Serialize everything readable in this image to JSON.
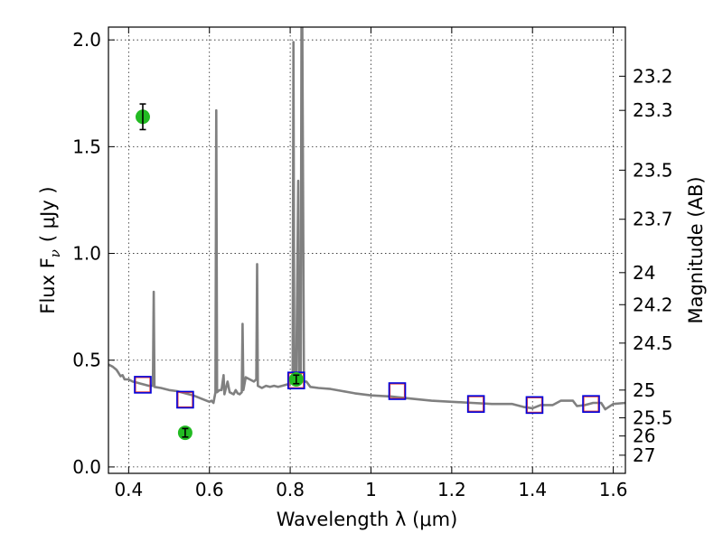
{
  "chart_data": {
    "type": "scatter",
    "xlabel": "Wavelength  λ (μm)",
    "ylabel": "Flux  F",
    "ylabel_sub": "ν",
    "ylabel_unit": "( μJy )",
    "y2label": "Magnitude (AB)",
    "xlim": [
      0.35,
      1.63
    ],
    "ylim": [
      -0.03,
      2.06
    ],
    "x_ticks": [
      0.4,
      0.6,
      0.8,
      1.0,
      1.2,
      1.4,
      1.6
    ],
    "x_tick_labels": [
      "0.4",
      "0.6",
      "0.8",
      "1",
      "1.2",
      "1.4",
      "1.6"
    ],
    "y_ticks": [
      0.0,
      0.5,
      1.0,
      1.5,
      2.0
    ],
    "y_tick_labels": [
      "0.0",
      "0.5",
      "1.0",
      "1.5",
      "2.0"
    ],
    "mag_ticks": [
      {
        "label": "23.2",
        "flux": 1.83
      },
      {
        "label": "23.3",
        "flux": 1.67
      },
      {
        "label": "23.5",
        "flux": 1.39
      },
      {
        "label": "23.7",
        "flux": 1.16
      },
      {
        "label": "24",
        "flux": 0.91
      },
      {
        "label": "24.2",
        "flux": 0.76
      },
      {
        "label": "24.5",
        "flux": 0.58
      },
      {
        "label": "25",
        "flux": 0.36
      },
      {
        "label": "25.5",
        "flux": 0.23
      },
      {
        "label": "26",
        "flux": 0.145
      },
      {
        "label": "27",
        "flux": 0.055
      }
    ],
    "grid": true,
    "colors": {
      "sed": "#808080",
      "photometry": "#22bb22",
      "model_box": "#0000dd",
      "model_box_inner": "#dd4444",
      "error_bar": "#000000"
    },
    "series": [
      {
        "type": "line",
        "points": [
          [
            0.35,
            0.48
          ],
          [
            0.36,
            0.47
          ],
          [
            0.37,
            0.455
          ],
          [
            0.375,
            0.44
          ],
          [
            0.38,
            0.425
          ],
          [
            0.385,
            0.43
          ],
          [
            0.39,
            0.41
          ],
          [
            0.4,
            0.41
          ],
          [
            0.41,
            0.4
          ],
          [
            0.42,
            0.395
          ],
          [
            0.43,
            0.39
          ],
          [
            0.44,
            0.385
          ],
          [
            0.45,
            0.38
          ],
          [
            0.46,
            0.38
          ],
          [
            0.462,
            0.82
          ],
          [
            0.464,
            0.375
          ],
          [
            0.48,
            0.37
          ],
          [
            0.5,
            0.36
          ],
          [
            0.52,
            0.355
          ],
          [
            0.54,
            0.345
          ],
          [
            0.56,
            0.335
          ],
          [
            0.58,
            0.32
          ],
          [
            0.6,
            0.305
          ],
          [
            0.605,
            0.31
          ],
          [
            0.61,
            0.3
          ],
          [
            0.615,
            0.35
          ],
          [
            0.617,
            1.67
          ],
          [
            0.619,
            0.35
          ],
          [
            0.625,
            0.36
          ],
          [
            0.63,
            0.36
          ],
          [
            0.635,
            0.43
          ],
          [
            0.637,
            0.34
          ],
          [
            0.645,
            0.4
          ],
          [
            0.65,
            0.35
          ],
          [
            0.66,
            0.34
          ],
          [
            0.665,
            0.36
          ],
          [
            0.67,
            0.345
          ],
          [
            0.675,
            0.34
          ],
          [
            0.68,
            0.35
          ],
          [
            0.682,
            0.67
          ],
          [
            0.684,
            0.36
          ],
          [
            0.69,
            0.42
          ],
          [
            0.7,
            0.41
          ],
          [
            0.71,
            0.4
          ],
          [
            0.716,
            0.41
          ],
          [
            0.718,
            0.95
          ],
          [
            0.72,
            0.38
          ],
          [
            0.73,
            0.37
          ],
          [
            0.74,
            0.38
          ],
          [
            0.75,
            0.375
          ],
          [
            0.76,
            0.38
          ],
          [
            0.77,
            0.375
          ],
          [
            0.78,
            0.38
          ],
          [
            0.79,
            0.385
          ],
          [
            0.8,
            0.39
          ],
          [
            0.806,
            0.4
          ],
          [
            0.808,
            1.99
          ],
          [
            0.81,
            0.4
          ],
          [
            0.815,
            0.41
          ],
          [
            0.82,
            1.34
          ],
          [
            0.822,
            0.4
          ],
          [
            0.826,
            0.41
          ],
          [
            0.828,
            2.06
          ],
          [
            0.83,
            2.06
          ],
          [
            0.834,
            0.4
          ],
          [
            0.84,
            0.4
          ],
          [
            0.85,
            0.375
          ],
          [
            0.87,
            0.37
          ],
          [
            0.9,
            0.365
          ],
          [
            0.93,
            0.355
          ],
          [
            0.96,
            0.345
          ],
          [
            1.0,
            0.335
          ],
          [
            1.05,
            0.33
          ],
          [
            1.1,
            0.32
          ],
          [
            1.15,
            0.31
          ],
          [
            1.2,
            0.305
          ],
          [
            1.25,
            0.3
          ],
          [
            1.3,
            0.295
          ],
          [
            1.35,
            0.295
          ],
          [
            1.38,
            0.28
          ],
          [
            1.4,
            0.275
          ],
          [
            1.42,
            0.29
          ],
          [
            1.45,
            0.29
          ],
          [
            1.47,
            0.31
          ],
          [
            1.5,
            0.31
          ],
          [
            1.51,
            0.285
          ],
          [
            1.53,
            0.29
          ],
          [
            1.55,
            0.3
          ],
          [
            1.57,
            0.3
          ],
          [
            1.58,
            0.27
          ],
          [
            1.6,
            0.295
          ],
          [
            1.63,
            0.3
          ]
        ]
      },
      {
        "type": "errorbar",
        "points": [
          {
            "x": 0.435,
            "y": 1.64,
            "err": 0.06
          },
          {
            "x": 0.54,
            "y": 0.16,
            "err": 0.02
          },
          {
            "x": 0.815,
            "y": 0.41,
            "err": 0.02
          }
        ]
      },
      {
        "type": "squares",
        "points": [
          {
            "x": 0.435,
            "y": 0.385
          },
          {
            "x": 0.54,
            "y": 0.315
          },
          {
            "x": 0.815,
            "y": 0.405
          },
          {
            "x": 1.065,
            "y": 0.355
          },
          {
            "x": 1.26,
            "y": 0.295
          },
          {
            "x": 1.405,
            "y": 0.29
          },
          {
            "x": 1.545,
            "y": 0.295
          }
        ]
      }
    ]
  }
}
